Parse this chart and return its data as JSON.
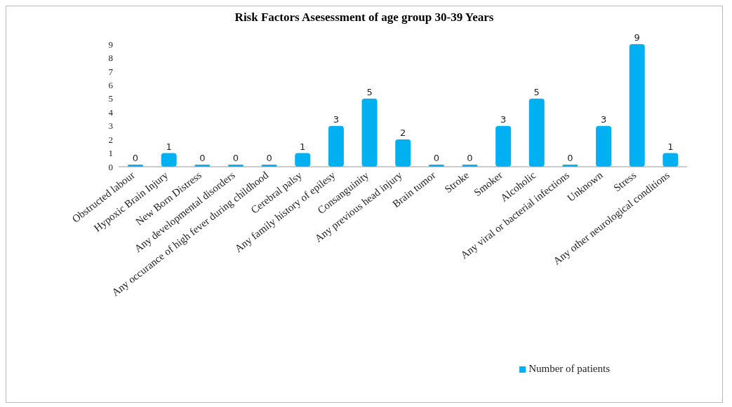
{
  "chart_data": {
    "type": "bar",
    "title": "Risk Factors  Asesessment of age group   30-39 Years",
    "categories": [
      "Obstructed labour",
      "Hypoxic Brain Injury",
      "New Born Distress",
      "Any developmental disorders",
      "Any occurance of high fever during childhood",
      "Cerebral palsy",
      "Any family history of epilesy",
      "Consanguinity",
      "Any previous head injury",
      "Brain tumor",
      "Stroke",
      "Smoker",
      "Alcoholic",
      "Any viral or bacterial infections",
      "Unknown",
      "Stress",
      "Any other neurological conditions"
    ],
    "series": [
      {
        "name": "Number of patients",
        "color": "#00b0f0",
        "values": [
          0,
          1,
          0,
          0,
          0,
          1,
          3,
          5,
          2,
          0,
          0,
          3,
          5,
          0,
          3,
          9,
          1
        ]
      }
    ],
    "ylim": [
      0,
      9
    ],
    "yticks": [
      0,
      1,
      2,
      3,
      4,
      5,
      6,
      7,
      8,
      9
    ],
    "grid": false,
    "legend": "bottom right",
    "data_labels": true
  }
}
